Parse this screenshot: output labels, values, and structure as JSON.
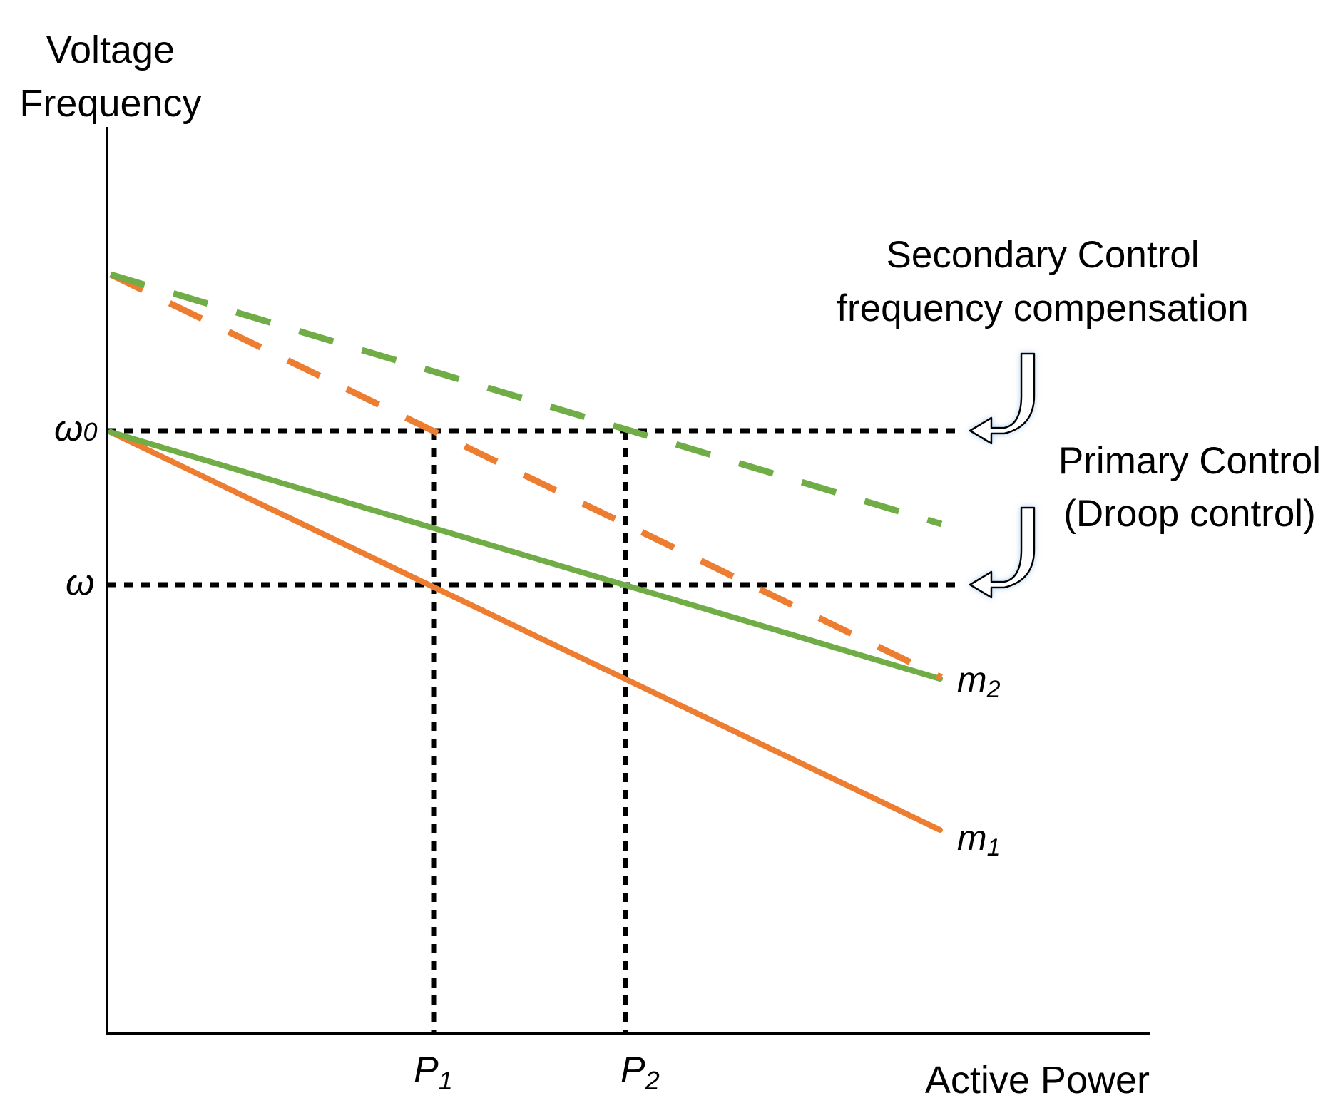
{
  "axes": {
    "y_label_line1": "Voltage",
    "y_label_line2": "Frequency",
    "x_label": "Active Power"
  },
  "levels": {
    "omega0_symbol": "ω",
    "omega0_subscript": "0",
    "omega_symbol": "ω"
  },
  "powers": {
    "p1_symbol": "P",
    "p1_subscript": "1",
    "p2_symbol": "P",
    "p2_subscript": "2"
  },
  "droop_lines": {
    "m1_symbol": "m",
    "m1_subscript": "1",
    "m2_symbol": "m",
    "m2_subscript": "2"
  },
  "annotations": {
    "secondary_line1": "Secondary Control",
    "secondary_line2": "frequency compensation",
    "primary_line1": "Primary Control",
    "primary_line2": "(Droop control)"
  },
  "colors": {
    "orange": "#ed7d31",
    "green": "#70ad47",
    "guides": "#000000",
    "arrow_fill": "#ffffff"
  }
}
